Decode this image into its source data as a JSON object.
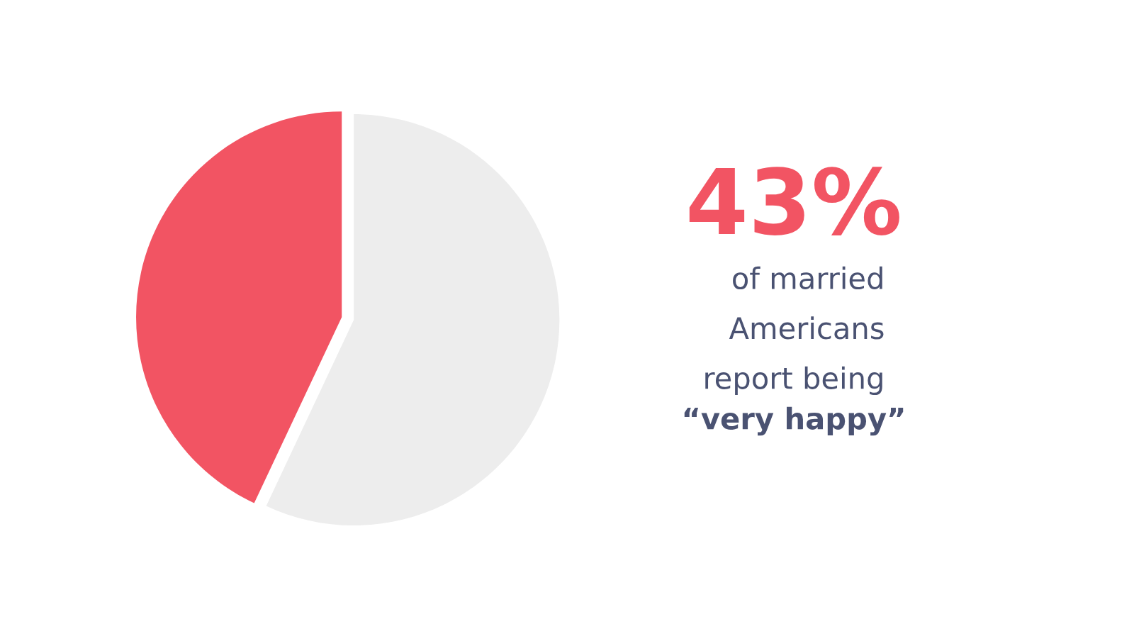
{
  "chart_data": {
    "type": "pie",
    "categories": [
      null,
      null
    ],
    "values": [
      43,
      57
    ],
    "colors": [
      "#f25463",
      "#ededed"
    ],
    "annotations": [
      "43%",
      "of married\nAmericans\nreport being",
      "“very happy”"
    ]
  }
}
